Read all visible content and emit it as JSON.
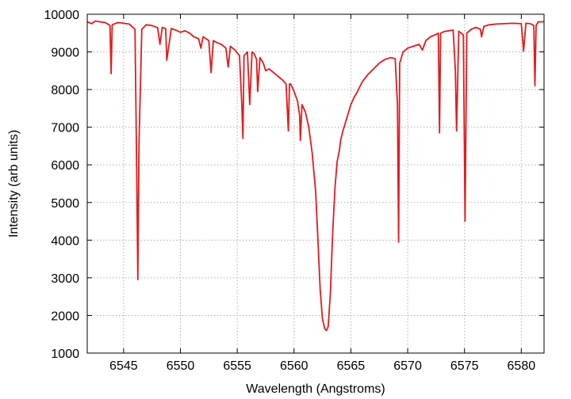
{
  "chart_data": {
    "type": "line",
    "title": "",
    "xlabel": "Wavelength (Angstroms)",
    "ylabel": "Intensity (arb units)",
    "xlim": [
      6541.8,
      6582
    ],
    "ylim": [
      1000,
      10000
    ],
    "xticks": [
      6545,
      6550,
      6555,
      6560,
      6565,
      6570,
      6575,
      6580
    ],
    "yticks": [
      1000,
      2000,
      3000,
      4000,
      5000,
      6000,
      7000,
      8000,
      9000,
      10000
    ],
    "grid": true,
    "line_color": "#e41a1c",
    "series": [
      {
        "x": [
          6541.8,
          6542.2,
          6542.5,
          6542.9,
          6543.4,
          6543.8,
          6543.9,
          6544.0,
          6544.5,
          6545.0,
          6545.5,
          6546.0,
          6546.15,
          6546.25,
          6546.35,
          6546.6,
          6547.0,
          6547.5,
          6548.0,
          6548.2,
          6548.4,
          6548.7,
          6548.8,
          6549.2,
          6549.6,
          6550.0,
          6550.4,
          6550.8,
          6551.2,
          6551.6,
          6551.8,
          6552.0,
          6552.5,
          6552.7,
          6552.9,
          6553.2,
          6553.6,
          6554.0,
          6554.2,
          6554.4,
          6554.8,
          6555.2,
          6555.4,
          6555.5,
          6555.6,
          6555.9,
          6556.1,
          6556.3,
          6556.5,
          6556.7,
          6556.8,
          6557.0,
          6557.3,
          6557.5,
          6557.8,
          6558.2,
          6558.6,
          6559.0,
          6559.3,
          6559.5,
          6559.6,
          6559.7,
          6560.0,
          6560.3,
          6560.5,
          6560.55,
          6560.7,
          6561.0,
          6561.3,
          6561.6,
          6561.9,
          6562.1,
          6562.3,
          6562.5,
          6562.7,
          6562.85,
          6563.0,
          6563.2,
          6563.4,
          6563.6,
          6563.8,
          6564.0,
          6564.1,
          6564.3,
          6564.6,
          6565.0,
          6565.3,
          6565.5,
          6566.0,
          6566.5,
          6567.0,
          6567.5,
          6568.0,
          6568.5,
          6568.9,
          6569.1,
          6569.2,
          6569.3,
          6569.6,
          6570.0,
          6570.5,
          6571.0,
          6571.3,
          6571.6,
          6572.0,
          6572.4,
          6572.7,
          6572.8,
          6572.9,
          6573.2,
          6573.6,
          6574.0,
          6574.2,
          6574.3,
          6574.5,
          6574.9,
          6575.05,
          6575.2,
          6575.6,
          6576.0,
          6576.4,
          6576.5,
          6576.7,
          6577.2,
          6577.8,
          6578.5,
          6579.2,
          6580.0,
          6580.2,
          6580.4,
          6580.8,
          6581.1,
          6581.2,
          6581.3,
          6581.5,
          6582.0
        ],
        "y": [
          9800,
          9750,
          9820,
          9800,
          9780,
          9700,
          8420,
          9720,
          9780,
          9760,
          9740,
          9600,
          6000,
          2950,
          6500,
          9600,
          9720,
          9700,
          9640,
          9200,
          9650,
          9620,
          8780,
          9620,
          9580,
          9520,
          9560,
          9500,
          9400,
          9350,
          9100,
          9400,
          9300,
          8450,
          9300,
          9250,
          9200,
          9100,
          8600,
          9150,
          9050,
          8900,
          7600,
          6700,
          8900,
          9000,
          7600,
          9000,
          8950,
          8800,
          7950,
          8850,
          8700,
          8500,
          8550,
          8450,
          8350,
          8250,
          8150,
          6900,
          8150,
          8150,
          7950,
          7700,
          7300,
          6650,
          7600,
          7400,
          7000,
          6300,
          5300,
          4000,
          2700,
          1900,
          1650,
          1600,
          1700,
          2600,
          4200,
          5400,
          6100,
          6400,
          6650,
          6900,
          7200,
          7600,
          7800,
          7900,
          8200,
          8400,
          8550,
          8700,
          8800,
          8850,
          8820,
          7600,
          3950,
          8700,
          9000,
          9100,
          9150,
          9200,
          9050,
          9300,
          9400,
          9450,
          9500,
          6850,
          9500,
          9540,
          9560,
          9580,
          8500,
          6900,
          9550,
          9450,
          4500,
          9500,
          9600,
          9650,
          9600,
          9400,
          9680,
          9720,
          9740,
          9750,
          9760,
          9750,
          9020,
          9760,
          9750,
          9700,
          8100,
          9700,
          9800,
          9800
        ]
      }
    ]
  }
}
